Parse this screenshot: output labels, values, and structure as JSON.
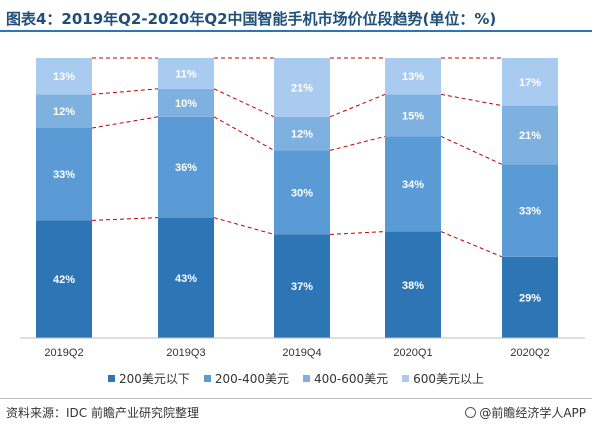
{
  "title": "图表4：2019年Q2-2020年Q2中国智能手机市场价位段趋势(单位：%)",
  "source": "资料来源：IDC 前瞻产业研究院整理",
  "brand": "@前瞻经济学人APP",
  "colors": {
    "seg0": "#2e75b6",
    "seg1": "#5b9bd5",
    "seg2": "#7fb1e0",
    "seg3": "#a9cbef",
    "connector": "#c00000",
    "title": "#1f4e79"
  },
  "chart_data": {
    "type": "bar",
    "stacked": true,
    "categories": [
      "2019Q2",
      "2019Q3",
      "2019Q4",
      "2020Q1",
      "2020Q2"
    ],
    "series": [
      {
        "name": "200美元以下",
        "values": [
          42,
          43,
          37,
          38,
          29
        ]
      },
      {
        "name": "200-400美元",
        "values": [
          33,
          36,
          30,
          34,
          33
        ]
      },
      {
        "name": "400-600美元",
        "values": [
          12,
          10,
          12,
          15,
          21
        ]
      },
      {
        "name": "600美元以上",
        "values": [
          13,
          11,
          21,
          13,
          17
        ]
      }
    ],
    "ylim": [
      0,
      100
    ],
    "grid": false,
    "legend": "bottom",
    "connector_lines": "dashed"
  }
}
